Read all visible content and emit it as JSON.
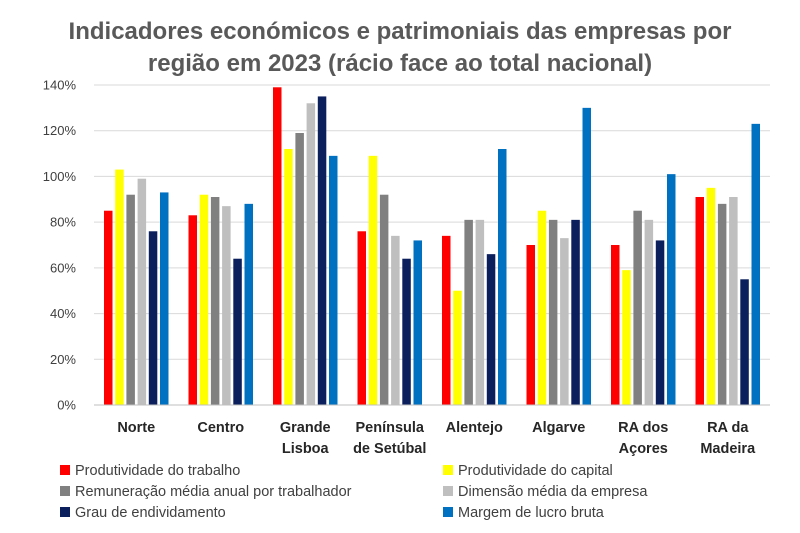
{
  "chart_data": {
    "type": "bar",
    "title": [
      "Indicadores económicos e patrimoniais das empresas por",
      "região em 2023 (rácio face ao total nacional)"
    ],
    "ylim": [
      0,
      140
    ],
    "ytick_values": [
      0,
      20,
      40,
      60,
      80,
      100,
      120,
      140
    ],
    "ytick_labels": [
      "0%",
      "20%",
      "40%",
      "60%",
      "80%",
      "100%",
      "120%",
      "140%"
    ],
    "grid": true,
    "legend_position": "bottom",
    "categories": [
      [
        "Norte"
      ],
      [
        "Centro"
      ],
      [
        "Grande",
        "Lisboa"
      ],
      [
        "Península",
        "de Setúbal"
      ],
      [
        "Alentejo"
      ],
      [
        "Algarve"
      ],
      [
        "RA dos",
        "Açores"
      ],
      [
        "RA da",
        "Madeira"
      ]
    ],
    "series": [
      {
        "name": "Produtividade do trabalho",
        "color": "#ff0000",
        "values": [
          85,
          83,
          139,
          76,
          74,
          70,
          70,
          91
        ]
      },
      {
        "name": "Produtividade do capital",
        "color": "#ffff00",
        "values": [
          103,
          92,
          112,
          109,
          50,
          85,
          59,
          95
        ]
      },
      {
        "name": "Remuneração média anual por trabalhador",
        "color": "#808080",
        "values": [
          92,
          91,
          119,
          92,
          81,
          81,
          85,
          88
        ]
      },
      {
        "name": "Dimensão média da empresa",
        "color": "#bfbfbf",
        "values": [
          99,
          87,
          132,
          74,
          81,
          73,
          81,
          91
        ]
      },
      {
        "name": "Grau de endividamento",
        "color": "#0b1f5c",
        "values": [
          76,
          64,
          135,
          64,
          66,
          81,
          72,
          55
        ]
      },
      {
        "name": "Margem de lucro bruta",
        "color": "#0070c0",
        "values": [
          93,
          88,
          109,
          72,
          112,
          130,
          101,
          123
        ]
      }
    ]
  }
}
